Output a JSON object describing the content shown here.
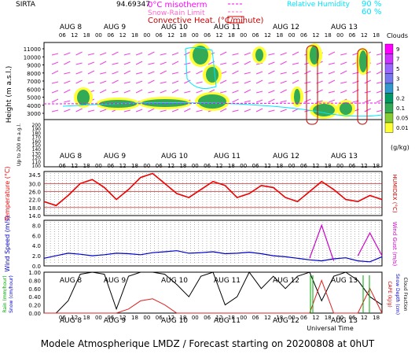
{
  "header": {
    "site": "SIRTA",
    "coords": "94.69347",
    "legend_misotherm": "0°C misotherm",
    "legend_snowrain": "Snow-Rain Limit",
    "legend_convective": "Convective Heat. (°C/minute)",
    "legend_rh": "Relative Humidity",
    "rh_90": "90 %",
    "rh_60": "60 %"
  },
  "footer": {
    "title": "Modele Atmospherique LMDZ / Forecast starting on 20200808 at 0hUT",
    "xaxis": "Universal Time"
  },
  "colors": {
    "misotherm": "#ff00ff",
    "snowrain": "#ff66cc",
    "convective": "#cc0000",
    "rh": "#00e5ff",
    "wind": "#0000cc",
    "gust": "#cc00cc",
    "temp": "#ee0000",
    "humidex": "#cc0000",
    "rain": "#000000"
  },
  "chart_data": [
    {
      "type": "heatmap",
      "name": "clouds",
      "ylabel": "Height (m a.s.l.)",
      "ylabel2": "Up to 200 m a.g.l.",
      "yticks": [
        3000,
        4000,
        5000,
        6000,
        7000,
        8000,
        9000,
        10000,
        11000
      ],
      "yticks_low": [
        200,
        190,
        180,
        170,
        160,
        150,
        140,
        130,
        120,
        110,
        100
      ],
      "days": [
        "AUG 8",
        "AUG 9",
        "AUG 10",
        "AUG 11",
        "AUG 12",
        "AUG 13"
      ],
      "hours": [
        "06",
        "12",
        "18",
        "00"
      ],
      "colorbar_title": "Clouds",
      "colorbar_unit": "(g/kg)",
      "colorbar_labels": [
        "9",
        "7",
        "5",
        "3",
        "1",
        "0.2",
        "0.1",
        "0.05",
        "0.01"
      ],
      "colorbar_colors": [
        "#ff00ff",
        "#cc33ff",
        "#9966ff",
        "#7777ee",
        "#3399cc",
        "#009966",
        "#33aa55",
        "#88cc33",
        "#ffff33"
      ]
    },
    {
      "type": "line",
      "name": "temperature",
      "ylabel": "Temperature (°C)",
      "ylabel2": "HUMIDEX (°C)",
      "yticks": [
        14.0,
        18.0,
        22.0,
        26.0,
        30.0,
        34.5
      ],
      "ylim": [
        14,
        36
      ],
      "x": [
        0,
        6,
        12,
        18,
        24,
        30,
        36,
        42,
        48,
        54,
        60,
        66,
        72,
        78,
        84,
        90,
        96,
        102,
        108,
        114,
        120,
        126,
        132,
        138,
        144,
        150,
        156,
        162,
        168
      ],
      "series": [
        {
          "values": [
            21,
            19,
            24,
            30,
            32,
            28,
            22,
            27,
            33,
            35,
            30,
            25,
            23,
            27,
            31,
            29,
            23,
            25,
            29,
            28,
            23,
            21,
            26,
            31,
            27,
            22,
            21,
            24,
            22
          ]
        }
      ]
    },
    {
      "type": "line",
      "name": "wind",
      "ylabel": "Wind Speed (m/s)",
      "ylabel2": "Wind Gust (m/s)",
      "yticks": [
        0.0,
        2.0,
        4.0,
        6.0,
        8.0
      ],
      "ylim": [
        0,
        9
      ],
      "x": [
        0,
        6,
        12,
        18,
        24,
        30,
        36,
        42,
        48,
        54,
        60,
        66,
        72,
        78,
        84,
        90,
        96,
        102,
        108,
        114,
        120,
        126,
        132,
        138,
        144,
        150,
        156,
        162,
        168
      ],
      "series": [
        {
          "values": [
            1.5,
            2.0,
            2.5,
            2.3,
            2.0,
            2.2,
            2.5,
            2.4,
            2.2,
            2.6,
            2.8,
            3.0,
            2.5,
            2.6,
            2.8,
            2.4,
            2.5,
            2.7,
            2.4,
            2.0,
            1.8,
            1.5,
            1.2,
            1.0,
            1.4,
            1.6,
            1.0,
            0.8,
            1.8
          ]
        },
        {
          "values": [
            null,
            null,
            null,
            null,
            null,
            null,
            null,
            null,
            null,
            null,
            null,
            null,
            null,
            null,
            null,
            null,
            null,
            null,
            null,
            null,
            null,
            null,
            1.5,
            8.0,
            1.0,
            null,
            2.0,
            6.5,
            2.0
          ]
        }
      ]
    },
    {
      "type": "line",
      "name": "rain",
      "ylabel": "Rain (mm/hour)",
      "ylabel_b": "Snow (cm/hour)",
      "ylabel2": "CAPE (kJ/g)",
      "ylabel2_b": "Snow Depth (cm)",
      "ylabel2_c": "Cloud Fraction",
      "yticks": [
        0.0,
        0.2,
        0.4,
        0.6,
        0.8,
        1.0
      ],
      "ylim": [
        0,
        1.0
      ],
      "x": [
        0,
        6,
        12,
        18,
        24,
        30,
        36,
        42,
        48,
        54,
        60,
        66,
        72,
        78,
        84,
        90,
        96,
        102,
        108,
        114,
        120,
        126,
        132,
        138,
        144,
        150,
        156,
        162,
        168
      ],
      "series": [
        {
          "values": [
            0,
            0,
            0.3,
            0.95,
            1.0,
            0.95,
            0.1,
            0.9,
            1.0,
            1.0,
            0.95,
            0.7,
            0.4,
            0.9,
            1.0,
            0.2,
            0.4,
            1.0,
            0.6,
            0.9,
            0.6,
            0.9,
            1.0,
            0.3,
            0.9,
            1.0,
            0.8,
            0.4,
            0.2
          ]
        },
        {
          "values": [
            0,
            0,
            0,
            0,
            0,
            0,
            0,
            0.1,
            0.3,
            0.35,
            0.2,
            0,
            0,
            0,
            0,
            0,
            0,
            0,
            0,
            0,
            0,
            0,
            0,
            0.8,
            0,
            0,
            0,
            0.6,
            0
          ]
        }
      ]
    }
  ]
}
